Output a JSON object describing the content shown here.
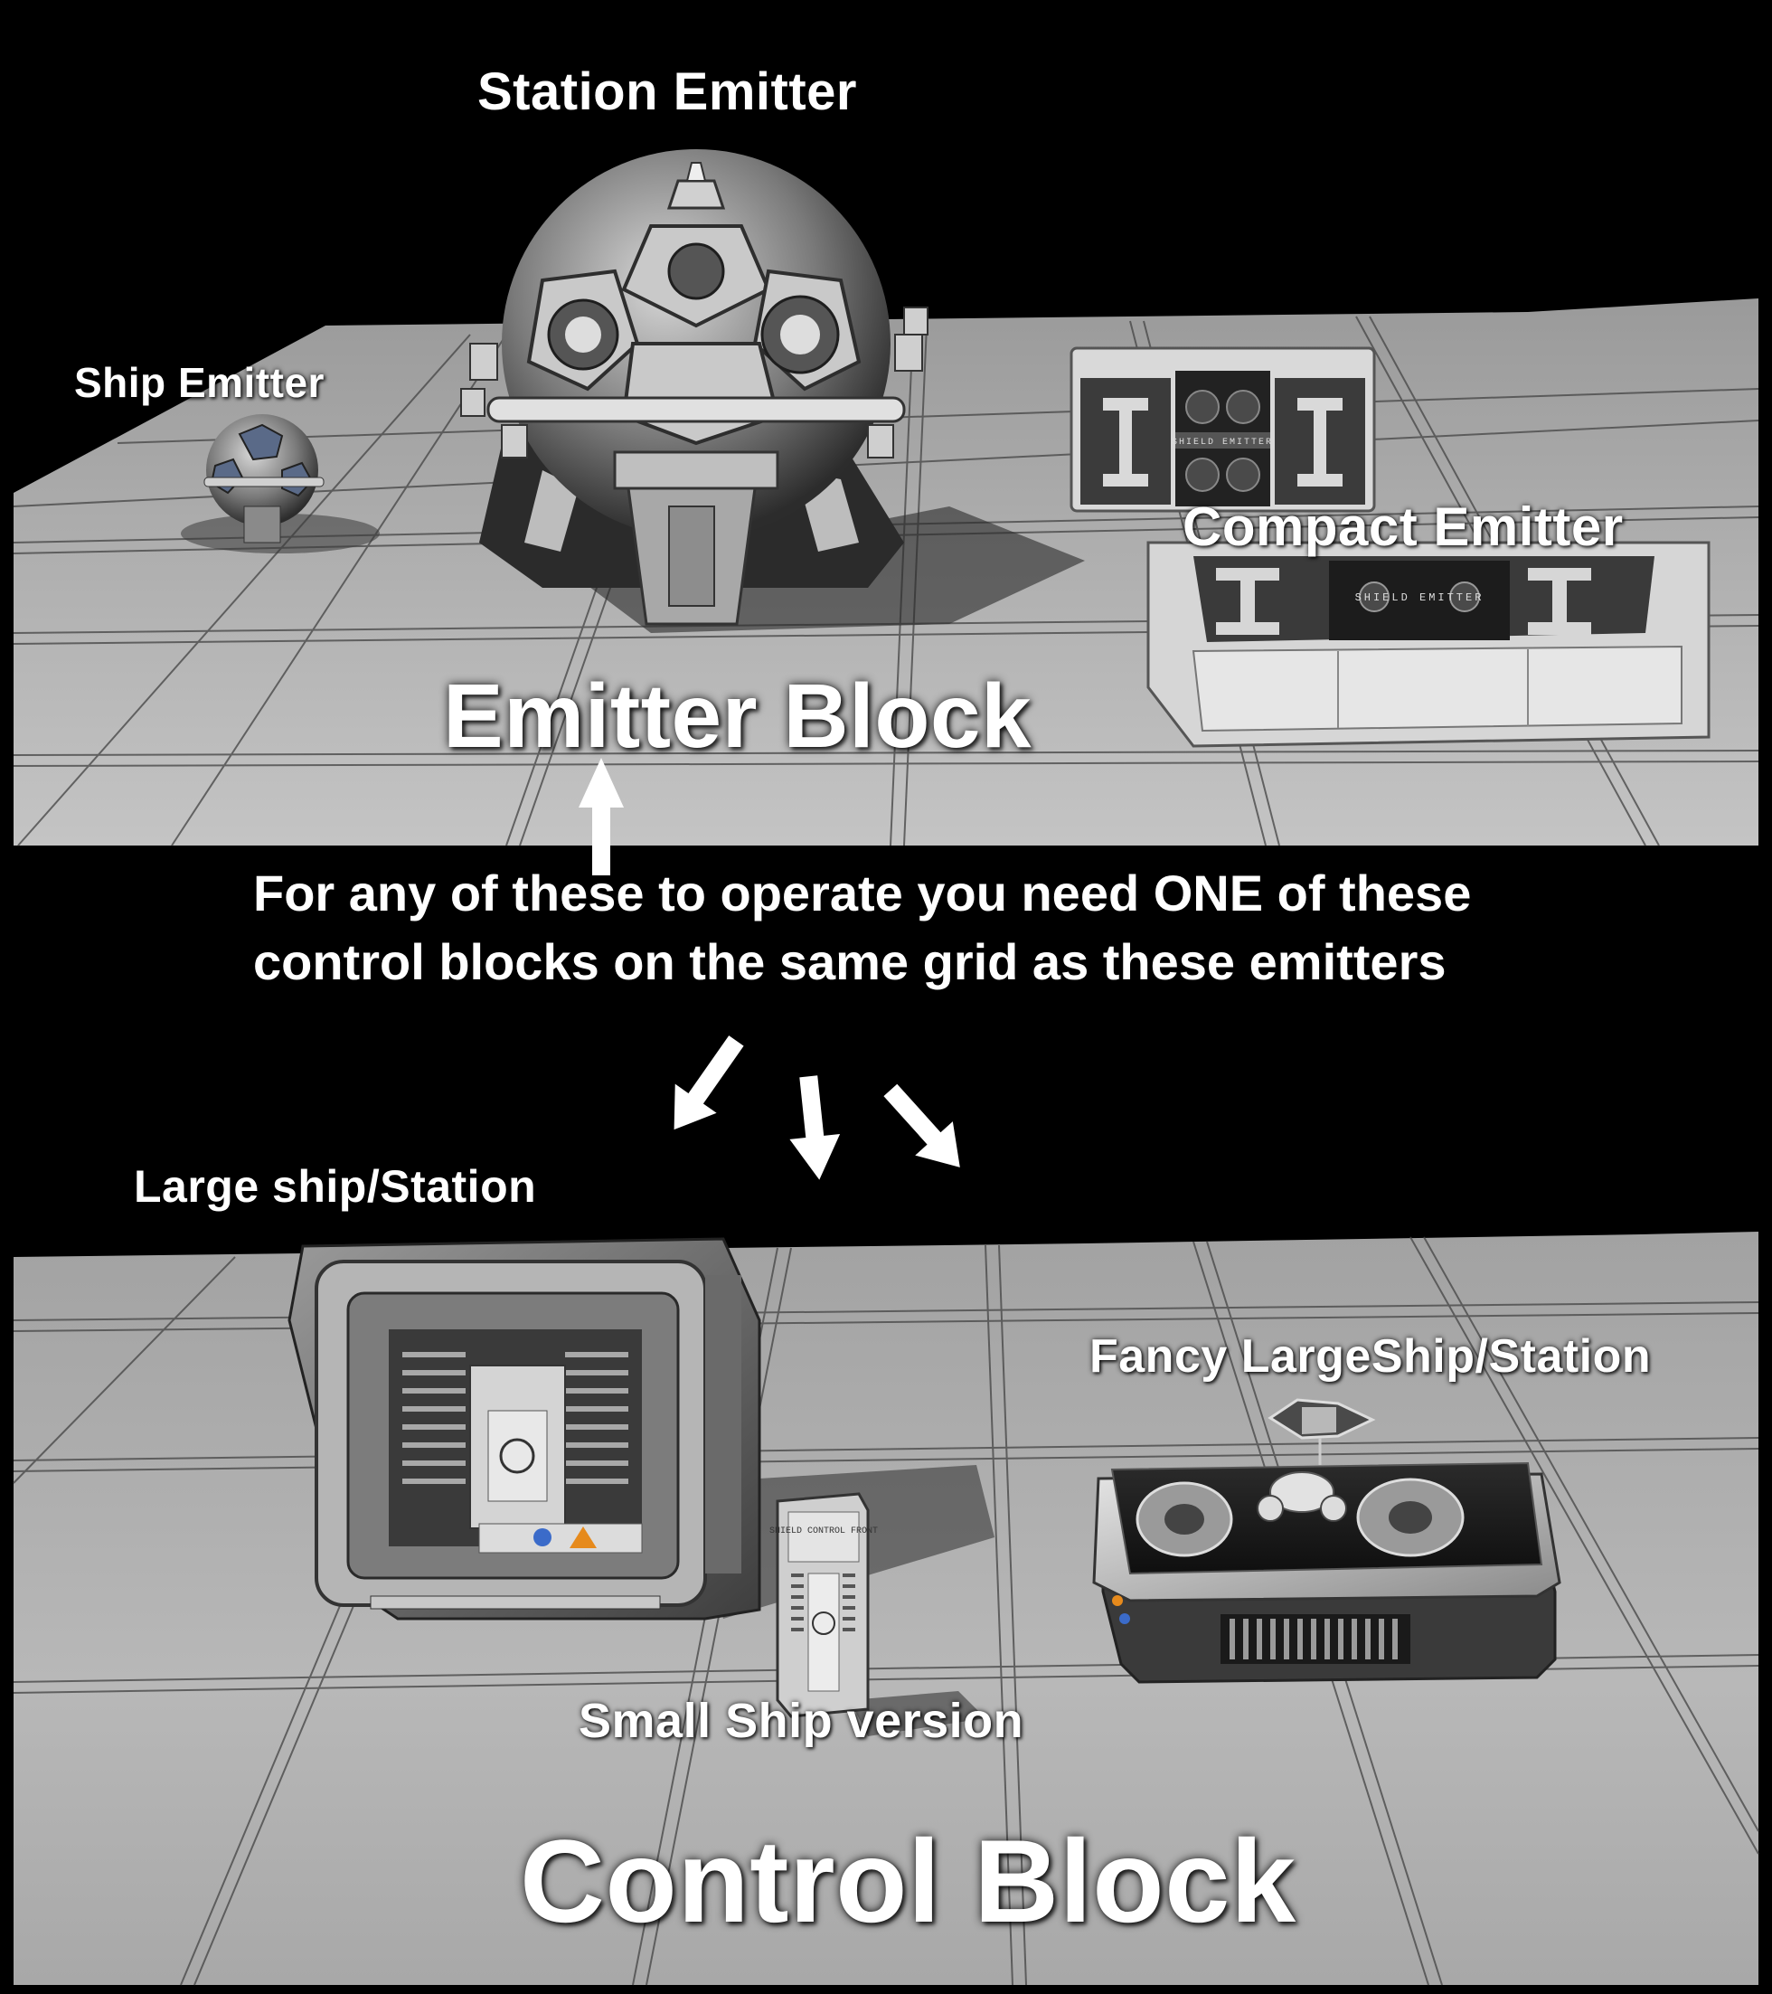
{
  "labels": {
    "station_emitter": "Station Emitter",
    "ship_emitter": "Ship Emitter",
    "compact_emitter": "Compact Emitter",
    "emitter_block": "Emitter Block",
    "large_ship_station": "Large ship/Station",
    "fancy_largeship_station": "Fancy LargeShip/Station",
    "small_ship_version": "Small Ship version",
    "control_block": "Control Block"
  },
  "caption": {
    "line1": "For any of these to operate you need ONE of these",
    "line2": "control blocks on the same grid as these emitters"
  },
  "decals": {
    "emitter_plate_text": "SHIELD EMITTER",
    "small_control_text": "SHIELD CONTROL FRONT"
  },
  "colors": {
    "background": "#000000",
    "floor": "#a9a9a9",
    "text": "#ffffff"
  }
}
